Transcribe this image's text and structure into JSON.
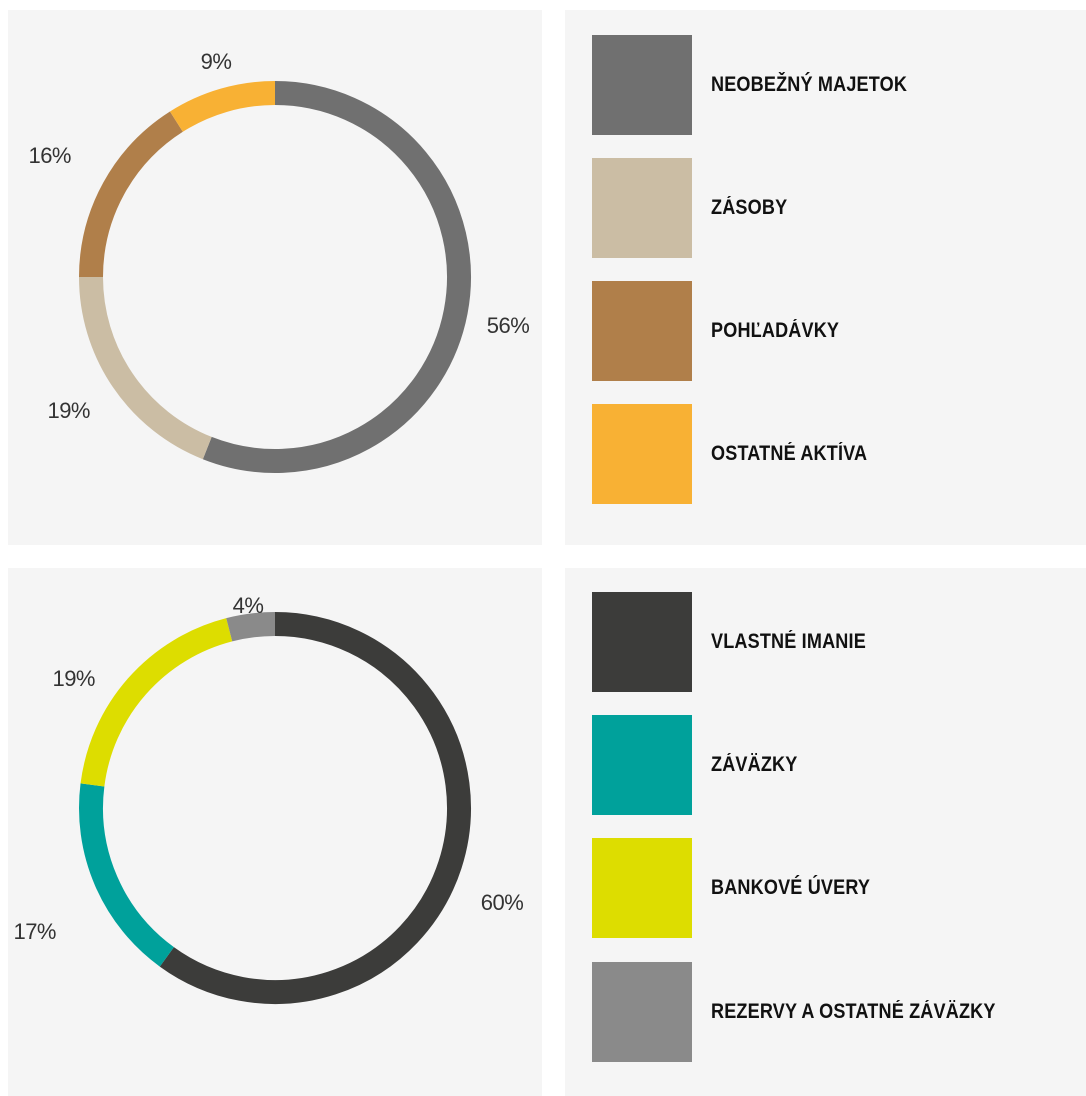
{
  "chart_data": [
    {
      "type": "pie",
      "variant": "donut",
      "categories": [
        "NEOBEŽNÝ MAJETOK",
        "ZÁSOBY",
        "POHĽADÁVKY",
        "OSTATNÉ AKTÍVA"
      ],
      "values": [
        56,
        19,
        16,
        9
      ],
      "value_labels": [
        "56%",
        "19%",
        "16%",
        "9%"
      ],
      "colors": [
        "#707070",
        "#cbbda4",
        "#b07f4a",
        "#f8b134"
      ],
      "legend": "right"
    },
    {
      "type": "pie",
      "variant": "donut",
      "categories": [
        "VLASTNÉ IMANIE",
        "ZÁVÄZKY",
        "BANKOVÉ ÚVERY",
        "REZERVY A OSTATNÉ ZÁVÄZKY"
      ],
      "values": [
        60,
        17,
        19,
        4
      ],
      "value_labels": [
        "60%",
        "17%",
        "19%",
        "4%"
      ],
      "colors": [
        "#3c3c3a",
        "#00a19b",
        "#dddd00",
        "#8a8a8a"
      ],
      "legend": "right"
    }
  ]
}
